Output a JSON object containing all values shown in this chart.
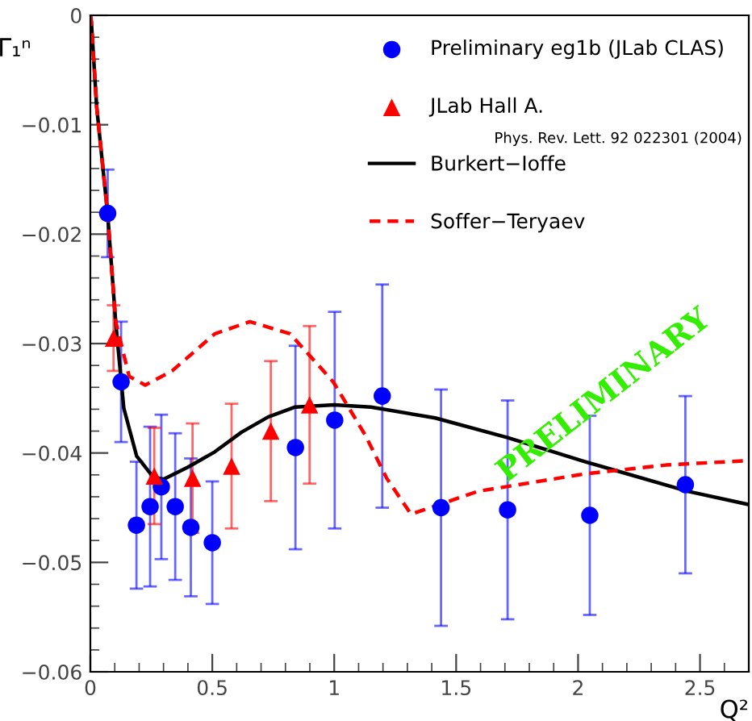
{
  "chart_data": {
    "type": "scatter",
    "xlabel": "Q²",
    "ylabel": "Γ₁ⁿ",
    "xlim": [
      0,
      2.7
    ],
    "ylim": [
      -0.06,
      0
    ],
    "xticks": [
      0,
      0.5,
      1,
      1.5,
      2,
      2.5
    ],
    "yticks": [
      {
        "value": -0.06,
        "label": "−0.06"
      },
      {
        "value": -0.05,
        "label": "−0.05"
      },
      {
        "value": -0.04,
        "label": "−0.04"
      },
      {
        "value": -0.03,
        "label": "−0.03"
      },
      {
        "value": -0.02,
        "label": "−0.02"
      },
      {
        "value": -0.01,
        "label": "−0.01"
      },
      0
    ],
    "grid": false,
    "legend": "top right",
    "series": [
      {
        "name": "Preliminary eg1b (JLab CLAS)",
        "type": "scatter",
        "marker": "circle",
        "color": "#0000ff",
        "x": [
          0.071,
          0.126,
          0.189,
          0.245,
          0.291,
          0.348,
          0.412,
          0.5,
          0.841,
          1.002,
          1.197,
          1.438,
          1.711,
          2.048,
          2.44
        ],
        "values": [
          -0.0181,
          -0.0335,
          -0.0466,
          -0.0449,
          -0.0431,
          -0.0449,
          -0.0468,
          -0.0482,
          -0.0395,
          -0.037,
          -0.0348,
          -0.045,
          -0.0452,
          -0.0457,
          -0.0429
        ],
        "errors": [
          0.004,
          0.0055,
          0.0058,
          0.0073,
          0.0066,
          0.0067,
          0.0063,
          0.0056,
          0.0093,
          0.0099,
          0.0102,
          0.0108,
          0.01,
          0.0091,
          0.0081
        ]
      },
      {
        "name": "JLab Hall A.",
        "type": "scatter",
        "marker": "triangle",
        "color": "#ff0000",
        "x": [
          0.095,
          0.262,
          0.419,
          0.579,
          0.74,
          0.899
        ],
        "values": [
          -0.0295,
          -0.0421,
          -0.0423,
          -0.0412,
          -0.038,
          -0.0356
        ],
        "errors": [
          0.003,
          0.0044,
          0.005,
          0.0057,
          0.0064,
          0.0072
        ]
      },
      {
        "name": "Burkert−Ioffe",
        "type": "line",
        "line_style": "solid",
        "color": "#000000",
        "x": [
          0,
          0.004,
          0.026,
          0.071,
          0.104,
          0.137,
          0.19,
          0.258,
          0.3,
          0.4,
          0.51,
          0.62,
          0.73,
          0.84,
          1.0,
          1.15,
          1.414,
          1.711,
          2.03,
          2.449,
          2.697
        ],
        "values": [
          0,
          -0.0006,
          -0.0084,
          -0.0182,
          -0.0281,
          -0.0359,
          -0.0403,
          -0.0422,
          -0.0424,
          -0.0413,
          -0.0399,
          -0.0381,
          -0.0367,
          -0.0358,
          -0.0356,
          -0.0358,
          -0.0368,
          -0.0386,
          -0.0408,
          -0.0435,
          -0.0447
        ]
      },
      {
        "name": "Soffer−Teryaev",
        "type": "line",
        "line_style": "dashed",
        "color": "#ff0000",
        "x": [
          0,
          0.004,
          0.026,
          0.071,
          0.104,
          0.159,
          0.225,
          0.335,
          0.511,
          0.654,
          0.819,
          0.996,
          1.128,
          1.215,
          1.315,
          1.59,
          2.03,
          2.361,
          2.697
        ],
        "values": [
          0,
          -0.0006,
          -0.0084,
          -0.0182,
          -0.028,
          -0.033,
          -0.0338,
          -0.0325,
          -0.0291,
          -0.028,
          -0.0291,
          -0.0335,
          -0.0384,
          -0.0423,
          -0.0456,
          -0.0435,
          -0.0419,
          -0.0411,
          -0.0407
        ]
      }
    ],
    "annotations": [
      "Phys. Rev. Lett. 92 022301 (2004)",
      "PRELIMINARY"
    ]
  }
}
